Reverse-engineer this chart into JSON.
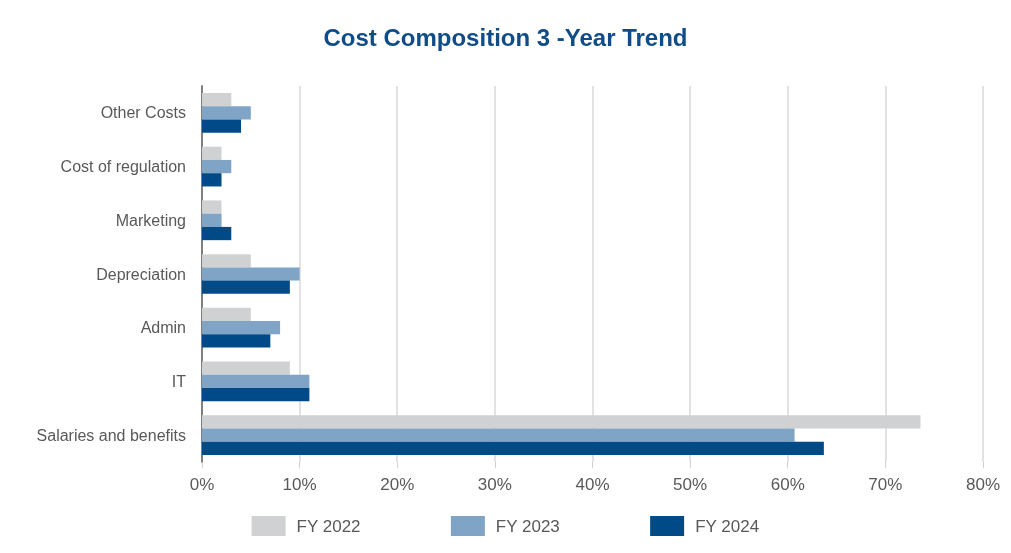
{
  "chart_data": {
    "type": "bar",
    "orientation": "horizontal",
    "title": "Cost Composition 3 -Year Trend",
    "categories": [
      "Other Costs",
      "Cost of regulation",
      "Marketing",
      "Depreciation",
      "Admin",
      "IT",
      "Salaries and benefits"
    ],
    "series": [
      {
        "name": "FY 2022",
        "color": "#d0d1d3",
        "values": [
          3,
          2,
          2,
          5,
          5,
          9,
          73.6
        ]
      },
      {
        "name": "FY 2023",
        "color": "#7fa4c6",
        "values": [
          5,
          3,
          2,
          10,
          8,
          11,
          60.7
        ]
      },
      {
        "name": "FY 2024",
        "color": "#004a87",
        "values": [
          4,
          2,
          3,
          9,
          7,
          11,
          63.7
        ]
      }
    ],
    "xlim": [
      0,
      80
    ],
    "xticks": [
      {
        "value": 0,
        "label": "0%"
      },
      {
        "value": 10,
        "label": "10%"
      },
      {
        "value": 20,
        "label": "20%"
      },
      {
        "value": 30,
        "label": "30%"
      },
      {
        "value": 40,
        "label": "40%"
      },
      {
        "value": 50,
        "label": "50%"
      },
      {
        "value": 60,
        "label": "60%"
      },
      {
        "value": 70,
        "label": "70%"
      },
      {
        "value": 80,
        "label": "80%"
      }
    ],
    "grid": "x",
    "legend": "bottom"
  }
}
